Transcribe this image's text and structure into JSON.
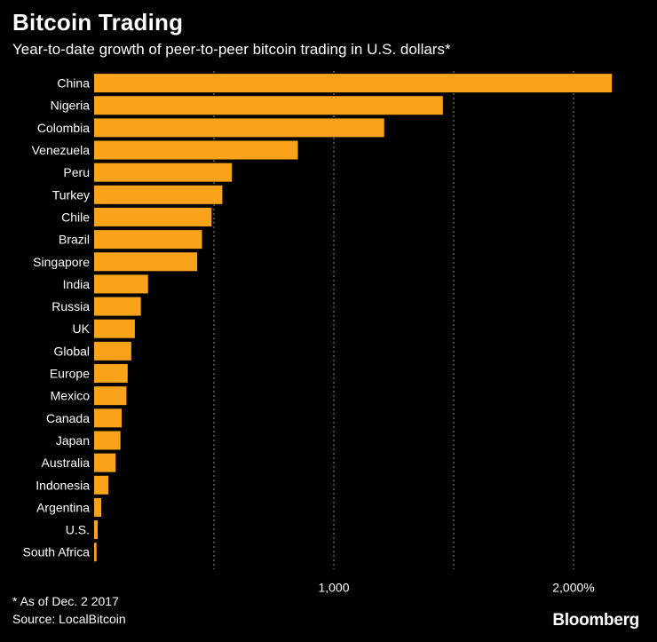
{
  "colors": {
    "background": "#000000",
    "bar": "#f9a31b",
    "text": "#ffffff",
    "grid": "#8a8a8a"
  },
  "chart_data": {
    "type": "bar",
    "orientation": "horizontal",
    "title": "Bitcoin Trading",
    "subtitle": "Year-to-date growth of peer-to-peer bitcoin trading in U.S. dollars*",
    "categories": [
      "China",
      "Nigeria",
      "Colombia",
      "Venezuela",
      "Peru",
      "Turkey",
      "Chile",
      "Brazil",
      "Singapore",
      "India",
      "Russia",
      "UK",
      "Global",
      "Europe",
      "Mexico",
      "Canada",
      "Japan",
      "Australia",
      "Indonesia",
      "Argentina",
      "U.S.",
      "South Africa"
    ],
    "values": [
      2160,
      1455,
      1210,
      850,
      575,
      535,
      490,
      450,
      430,
      225,
      195,
      170,
      155,
      140,
      135,
      115,
      110,
      90,
      60,
      30,
      15,
      10
    ],
    "xlim": [
      0,
      2200
    ],
    "xticks": [
      500,
      1000,
      1500,
      2000
    ],
    "xtick_labels": [
      "",
      "1,000",
      "",
      "2,000%"
    ],
    "grid": "vertical dotted",
    "legend": "none"
  },
  "footnote": {
    "note": "* As of Dec. 2 2017",
    "source": "Source: LocalBitcoin"
  },
  "brand": "Bloomberg"
}
